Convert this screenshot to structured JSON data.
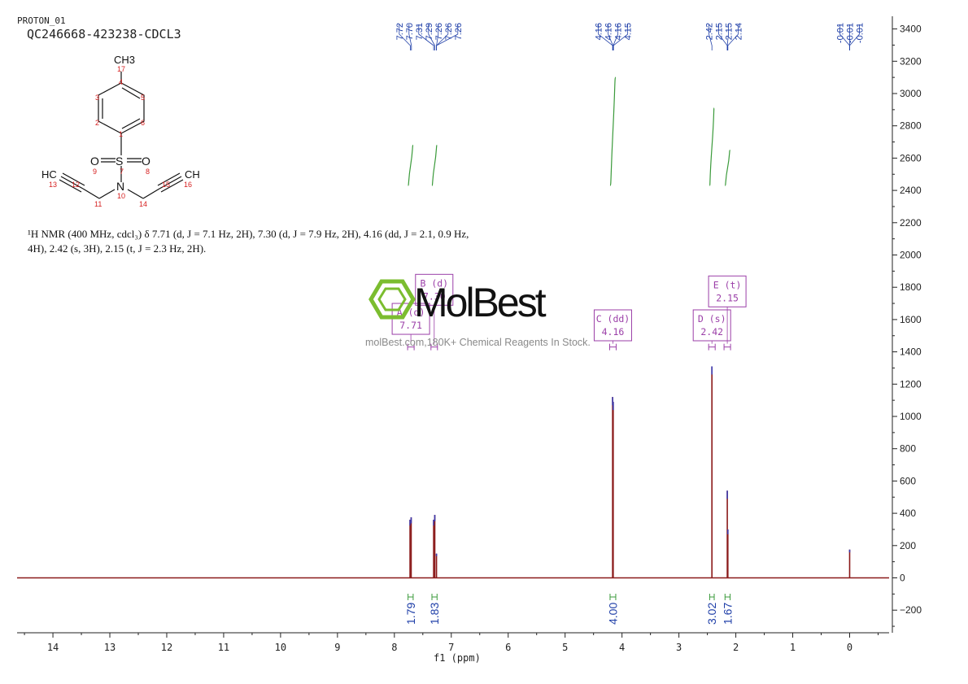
{
  "header": {
    "title_line1": "PROTON_01",
    "title_line2": "QC246668-423238-CDCL3"
  },
  "nmr_text": {
    "line1": "¹H NMR (400 MHz, cdcl₃) δ 7.71 (d, J = 7.1 Hz, 2H), 7.30 (d, J = 7.9 Hz, 2H), 4.16 (dd, J = 2.1, 0.9 Hz,",
    "line2": "4H), 2.42 (s, 3H), 2.15 (t, J = 2.3 Hz, 2H)."
  },
  "watermark": {
    "name": "MolBest",
    "tagline": "molBest.com,180K+ Chemical Reagents In Stock."
  },
  "structure": {
    "methyl": "CH3",
    "s_label": "S",
    "o_label": "O",
    "n_label": "N",
    "alkyne_left": "HC",
    "alkyne_right": "CH",
    "atom_numbers": [
      "17",
      "4",
      "3",
      "5",
      "2",
      "6",
      "1",
      "9",
      "7",
      "8",
      "13",
      "12",
      "11",
      "10",
      "14",
      "15",
      "16"
    ]
  },
  "chart_data": {
    "type": "line",
    "title": "",
    "xlabel": "f1 (ppm)",
    "ylabel": "",
    "x_reversed": true,
    "xlim": [
      14.6,
      -0.7
    ],
    "ylim": [
      -340,
      3500
    ],
    "x_ticks": [
      14,
      13,
      12,
      11,
      10,
      9,
      8,
      7,
      6,
      5,
      4,
      3,
      2,
      1,
      0
    ],
    "y_ticks": [
      -200,
      0,
      200,
      400,
      600,
      800,
      1000,
      1200,
      1400,
      1600,
      1800,
      2000,
      2200,
      2400,
      2600,
      2800,
      3000,
      3200,
      3400
    ],
    "peaks": [
      {
        "ppm": 7.725,
        "height": 360
      },
      {
        "ppm": 7.705,
        "height": 375
      },
      {
        "ppm": 7.31,
        "height": 360
      },
      {
        "ppm": 7.29,
        "height": 390
      },
      {
        "ppm": 7.26,
        "height": 150
      },
      {
        "ppm": 4.165,
        "height": 1120
      },
      {
        "ppm": 4.155,
        "height": 1090
      },
      {
        "ppm": 2.42,
        "height": 1310
      },
      {
        "ppm": 2.15,
        "height": 540
      },
      {
        "ppm": 2.14,
        "height": 300
      },
      {
        "ppm": 0.0,
        "height": 175
      }
    ],
    "peak_labels": [
      {
        "group": "7.72 7.70 7.31 7.29 7.26 7.26 7.26",
        "values": [
          "7.72",
          "7.70",
          "7.31",
          "7.29",
          "7.26",
          "7.26",
          "7.26"
        ],
        "ppm": [
          7.72,
          7.7,
          7.31,
          7.29,
          7.26,
          7.26,
          7.26
        ]
      },
      {
        "group": "4.16 4.16 4.16 4.15",
        "values": [
          "4.16",
          "4.16",
          "4.16",
          "4.15"
        ],
        "ppm": [
          4.165,
          4.16,
          4.155,
          4.15
        ]
      },
      {
        "group": "2.42 2.15 2.15 2.14",
        "values": [
          "2.42",
          "2.15",
          "2.15",
          "2.14"
        ],
        "ppm": [
          2.42,
          2.15,
          2.15,
          2.14
        ]
      },
      {
        "group": "-0.01 -0.01 -0.01",
        "values": [
          "-0.01",
          "-0.01",
          "-0.01"
        ],
        "ppm": [
          0.0,
          0.0,
          0.0
        ]
      }
    ],
    "integrals": [
      {
        "ppm_from": 7.76,
        "ppm_to": 7.67,
        "value": "1.79",
        "curve_bottom": 2430,
        "curve_top": 2680
      },
      {
        "ppm_from": 7.34,
        "ppm_to": 7.25,
        "value": "1.83",
        "curve_bottom": 2430,
        "curve_top": 2680
      },
      {
        "ppm_from": 4.21,
        "ppm_to": 4.11,
        "value": "4.00",
        "curve_bottom": 2430,
        "curve_top": 3100
      },
      {
        "ppm_from": 2.46,
        "ppm_to": 2.38,
        "value": "3.02",
        "curve_bottom": 2430,
        "curve_top": 2910
      },
      {
        "ppm_from": 2.19,
        "ppm_to": 2.1,
        "value": "1.67",
        "curve_bottom": 2430,
        "curve_top": 2650
      }
    ],
    "multiplets": [
      {
        "label": "A (d)",
        "shift": "7.71",
        "ppm": 7.71,
        "box_top": 1700
      },
      {
        "label": "B (d)",
        "shift": "7.30",
        "ppm": 7.3,
        "box_top": 1880
      },
      {
        "label": "C (dd)",
        "shift": "4.16",
        "ppm": 4.16,
        "box_top": 1660
      },
      {
        "label": "D (s)",
        "shift": "2.42",
        "ppm": 2.42,
        "box_top": 1660
      },
      {
        "label": "E (t)",
        "shift": "2.15",
        "ppm": 2.15,
        "box_top": 1870
      }
    ],
    "colors": {
      "spectrum": "#8b1a1a",
      "peak_tip": "#3b3bb0",
      "integral": "#3a9a3a",
      "integral_text": "#1f3fa8",
      "multiplet": "#9b3fa8",
      "peak_label": "#1f3fa8",
      "axis": "#222222"
    }
  }
}
